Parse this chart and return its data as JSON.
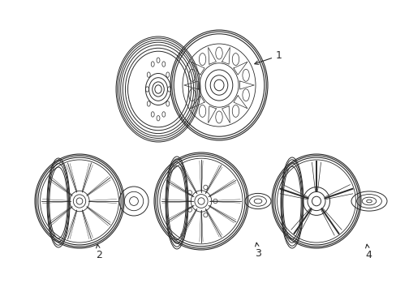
{
  "background_color": "#ffffff",
  "line_color": "#2a2a2a",
  "items": [
    {
      "id": 1,
      "row": 0
    },
    {
      "id": 2,
      "row": 1
    },
    {
      "id": 3,
      "row": 1
    },
    {
      "id": 4,
      "row": 1
    }
  ]
}
